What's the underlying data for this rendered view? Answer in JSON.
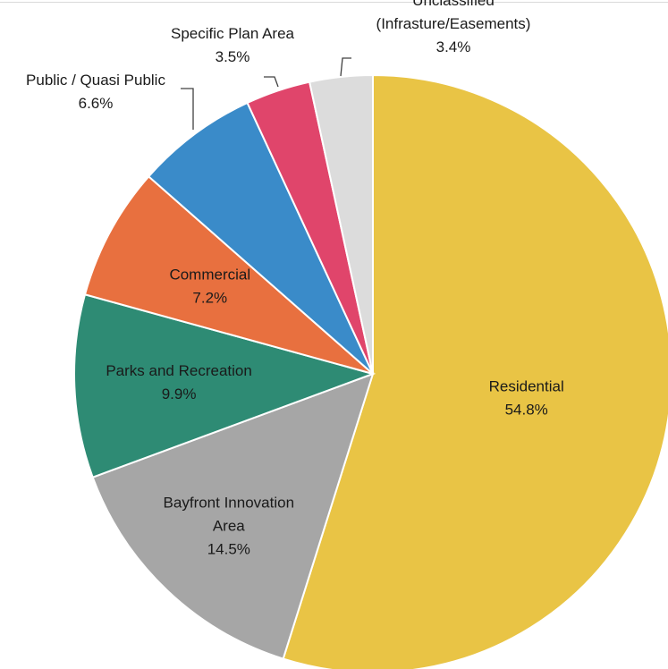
{
  "chart_data": {
    "type": "pie",
    "title": "",
    "start_angle_deg": 0,
    "direction": "clockwise",
    "colors": {
      "Residential": "#E9C445",
      "Bayfront Innovation Area": "#A6A6A6",
      "Parks and Recreation": "#2E8B74",
      "Commercial": "#E8703F",
      "Public / Quasi Public": "#3A8BC9",
      "Specific Plan Area": "#E0456B",
      "Unclassified (Infrasture/Easements)": "#DCDCDC"
    },
    "slices": [
      {
        "category": "Residential",
        "value": 54.8,
        "label_lines": [
          "Residential"
        ],
        "value_label": "54.8%"
      },
      {
        "category": "Bayfront Innovation Area",
        "value": 14.5,
        "label_lines": [
          "Bayfront Innovation",
          "Area"
        ],
        "value_label": "14.5%"
      },
      {
        "category": "Parks and Recreation",
        "value": 9.9,
        "label_lines": [
          "Parks and Recreation"
        ],
        "value_label": "9.9%"
      },
      {
        "category": "Commercial",
        "value": 7.2,
        "label_lines": [
          "Commercial"
        ],
        "value_label": "7.2%"
      },
      {
        "category": "Public / Quasi Public",
        "value": 6.6,
        "label_lines": [
          "Public / Quasi Public"
        ],
        "value_label": "6.6%"
      },
      {
        "category": "Specific Plan Area",
        "value": 3.5,
        "label_lines": [
          "Specific Plan Area"
        ],
        "value_label": "3.5%"
      },
      {
        "category": "Unclassified (Infrasture/Easements)",
        "value": 3.4,
        "label_lines": [
          "Unclassified",
          "(Infrasture/Easements)"
        ],
        "value_label": "3.4%"
      }
    ]
  }
}
